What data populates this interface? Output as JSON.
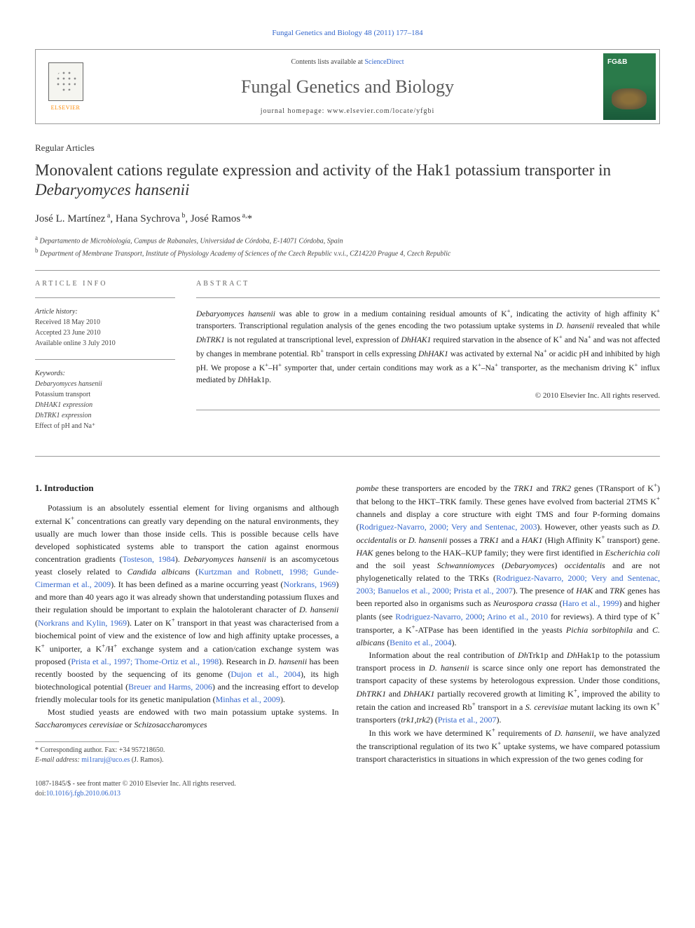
{
  "journal_ref": "Fungal Genetics and Biology 48 (2011) 177–184",
  "header": {
    "contents_text": "Contents lists available at ",
    "contents_link": "ScienceDirect",
    "journal_title": "Fungal Genetics and Biology",
    "homepage_text": "journal homepage: www.elsevier.com/locate/yfgbi",
    "publisher": "ELSEVIER",
    "cover_label": "FG&B"
  },
  "article": {
    "type": "Regular Articles",
    "title_pre": "Monovalent cations regulate expression and activity of the Hak1 potassium transporter in ",
    "title_species": "Debaryomyces hansenii",
    "authors_html": "José L. Martínez <sup>a</sup>, Hana Sychrova <sup>b</sup>, José Ramos <sup>a,</sup>*",
    "affiliations": {
      "a": "Departamento de Microbiología, Campus de Rabanales, Universidad de Córdoba, E-14071 Córdoba, Spain",
      "b": "Department of Membrane Transport, Institute of Physiology Academy of Sciences of the Czech Republic v.v.i., CZ14220 Prague 4, Czech Republic"
    }
  },
  "info": {
    "heading": "ARTICLE INFO",
    "history_label": "Article history:",
    "received": "Received 18 May 2010",
    "accepted": "Accepted 23 June 2010",
    "online": "Available online 3 July 2010",
    "keywords_label": "Keywords:",
    "keywords": [
      "Debaryomyces hansenii",
      "Potassium transport",
      "DhHAK1 expression",
      "DhTRK1 expression",
      "Effect of pH and Na⁺"
    ]
  },
  "abstract": {
    "heading": "ABSTRACT",
    "text": "Debaryomyces hansenii was able to grow in a medium containing residual amounts of K⁺, indicating the activity of high affinity K⁺ transporters. Transcriptional regulation analysis of the genes encoding the two potassium uptake systems in D. hansenii revealed that while DhTRK1 is not regulated at transcriptional level, expression of DhHAK1 required starvation in the absence of K⁺ and Na⁺ and was not affected by changes in membrane potential. Rb⁺ transport in cells expressing DhHAK1 was activated by external Na⁺ or acidic pH and inhibited by high pH. We propose a K⁺–H⁺ symporter that, under certain conditions may work as a K⁺–Na⁺ transporter, as the mechanism driving K⁺ influx mediated by DhHak1p.",
    "copyright": "© 2010 Elsevier Inc. All rights reserved."
  },
  "body": {
    "intro_heading": "1. Introduction",
    "col1_p1": "Potassium is an absolutely essential element for living organisms and although external K⁺ concentrations can greatly vary depending on the natural environments, they usually are much lower than those inside cells. This is possible because cells have developed sophisticated systems able to transport the cation against enormous concentration gradients (Tosteson, 1984). Debaryomyces hansenii is an ascomycetous yeast closely related to Candida albicans (Kurtzman and Robnett, 1998; Gunde-Cimerman et al., 2009). It has been defined as a marine occurring yeast (Norkrans, 1969) and more than 40 years ago it was already shown that understanding potassium fluxes and their regulation should be important to explain the halotolerant character of D. hansenii (Norkrans and Kylin, 1969). Later on K⁺ transport in that yeast was characterised from a biochemical point of view and the existence of low and high affinity uptake processes, a K⁺ uniporter, a K⁺/H⁺ exchange system and a cation/cation exchange system was proposed (Prista et al., 1997; Thome-Ortiz et al., 1998). Research in D. hansenii has been recently boosted by the sequencing of its genome (Dujon et al., 2004), its high biotechnological potential (Breuer and Harms, 2006) and the increasing effort to develop friendly molecular tools for its genetic manipulation (Minhas et al., 2009).",
    "col1_p2": "Most studied yeasts are endowed with two main potassium uptake systems. In Saccharomyces cerevisiae or Schizosaccharomyces",
    "col2_p1": "pombe these transporters are encoded by the TRK1 and TRK2 genes (TRansport of K⁺) that belong to the HKT–TRK family. These genes have evolved from bacterial 2TMS K⁺ channels and display a core structure with eight TMS and four P-forming domains (Rodriguez-Navarro, 2000; Very and Sentenac, 2003). However, other yeasts such as D. occidentalis or D. hansenii posses a TRK1 and a HAK1 (High Affinity K⁺ transport) gene. HAK genes belong to the HAK–KUP family; they were first identified in Escherichia coli and the soil yeast Schwanniomyces (Debaryomyces) occidentalis and are not phylogenetically related to the TRKs (Rodriguez-Navarro, 2000; Very and Sentenac, 2003; Banuelos et al., 2000; Prista et al., 2007). The presence of HAK and TRK genes has been reported also in organisms such as Neurospora crassa (Haro et al., 1999) and higher plants (see Rodriguez-Navarro, 2000; Arino et al., 2010 for reviews). A third type of K⁺ transporter, a K⁺-ATPase has been identified in the yeasts Pichia sorbitophila and C. albicans (Benito et al., 2004).",
    "col2_p2": "Information about the real contribution of DhTrk1p and DhHak1p to the potassium transport process in D. hansenii is scarce since only one report has demonstrated the transport capacity of these systems by heterologous expression. Under those conditions, DhTRK1 and DhHAK1 partially recovered growth at limiting K⁺, improved the ability to retain the cation and increased Rb⁺ transport in a S. cerevisiae mutant lacking its own K⁺ transporters (trk1,trk2) (Prista et al., 2007).",
    "col2_p3": "In this work we have determined K⁺ requirements of D. hansenii, we have analyzed the transcriptional regulation of its two K⁺ uptake systems, we have compared potassium transport characteristics in situations in which expression of the two genes coding for"
  },
  "footnote": {
    "corr_label": "* Corresponding author. Fax: +34 957218650.",
    "email_label": "E-mail address: ",
    "email": "mi1raruj@uco.es",
    "email_suffix": " (J. Ramos)."
  },
  "footer": {
    "issn_line": "1087-1845/$ - see front matter © 2010 Elsevier Inc. All rights reserved.",
    "doi_label": "doi:",
    "doi": "10.1016/j.fgb.2010.06.013"
  },
  "colors": {
    "link": "#3366cc",
    "text": "#222222",
    "muted": "#666666",
    "border": "#999999",
    "elsevier_orange": "#ff8800",
    "cover_green": "#2a7a4a"
  }
}
